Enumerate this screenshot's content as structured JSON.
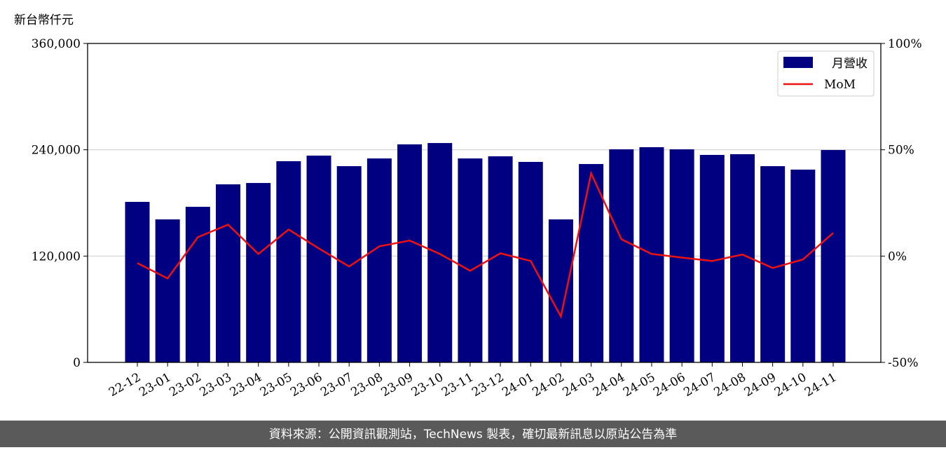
{
  "chart_data": {
    "type": "bar_line",
    "y_axis_label": "新台幣仟元",
    "categories": [
      "22-12",
      "23-01",
      "23-02",
      "23-03",
      "23-04",
      "23-05",
      "23-06",
      "23-07",
      "23-08",
      "23-09",
      "23-10",
      "23-11",
      "23-12",
      "24-01",
      "24-02",
      "24-03",
      "24-04",
      "24-05",
      "24-06",
      "24-07",
      "24-08",
      "24-09",
      "24-10",
      "24-11"
    ],
    "series": [
      {
        "name": "月營收",
        "color": "#000080",
        "type": "bar",
        "values": [
          181200,
          161400,
          175600,
          201000,
          202500,
          227100,
          233400,
          221500,
          230200,
          246100,
          247600,
          230200,
          232600,
          226300,
          161400,
          223900,
          240500,
          242900,
          240500,
          234200,
          235000,
          221500,
          217600,
          239700
        ]
      },
      {
        "name": "MoM",
        "color": "#ee1111",
        "type": "line",
        "axis": "y2",
        "values": [
          -3.3,
          -10.5,
          8.9,
          14.8,
          1.0,
          12.5,
          3.6,
          -4.9,
          4.6,
          7.3,
          1.0,
          -6.9,
          1.3,
          -2.3,
          -28.4,
          38.9,
          7.9,
          1.0,
          -0.7,
          -2.3,
          0.7,
          -5.6,
          -1.6,
          10.9
        ]
      }
    ],
    "ylim": [
      0,
      360000
    ],
    "yticks": [
      0,
      {
        "value": 120000,
        "label": "120,000"
      },
      {
        "value": 240000,
        "label": "240,000"
      },
      {
        "value": 360000,
        "label": "360,000"
      }
    ],
    "y2lim": [
      -50,
      100
    ],
    "y2ticks": [
      {
        "value": -50,
        "label": "-50%"
      },
      {
        "value": 0,
        "label": "0%"
      },
      {
        "value": 50,
        "label": "50%"
      },
      {
        "value": 100,
        "label": "100%"
      }
    ],
    "grid": true,
    "legend": "upper right"
  },
  "footer": "資料來源：公開資訊觀測站，TechNews 製表，確切最新訊息以原站公告為準"
}
